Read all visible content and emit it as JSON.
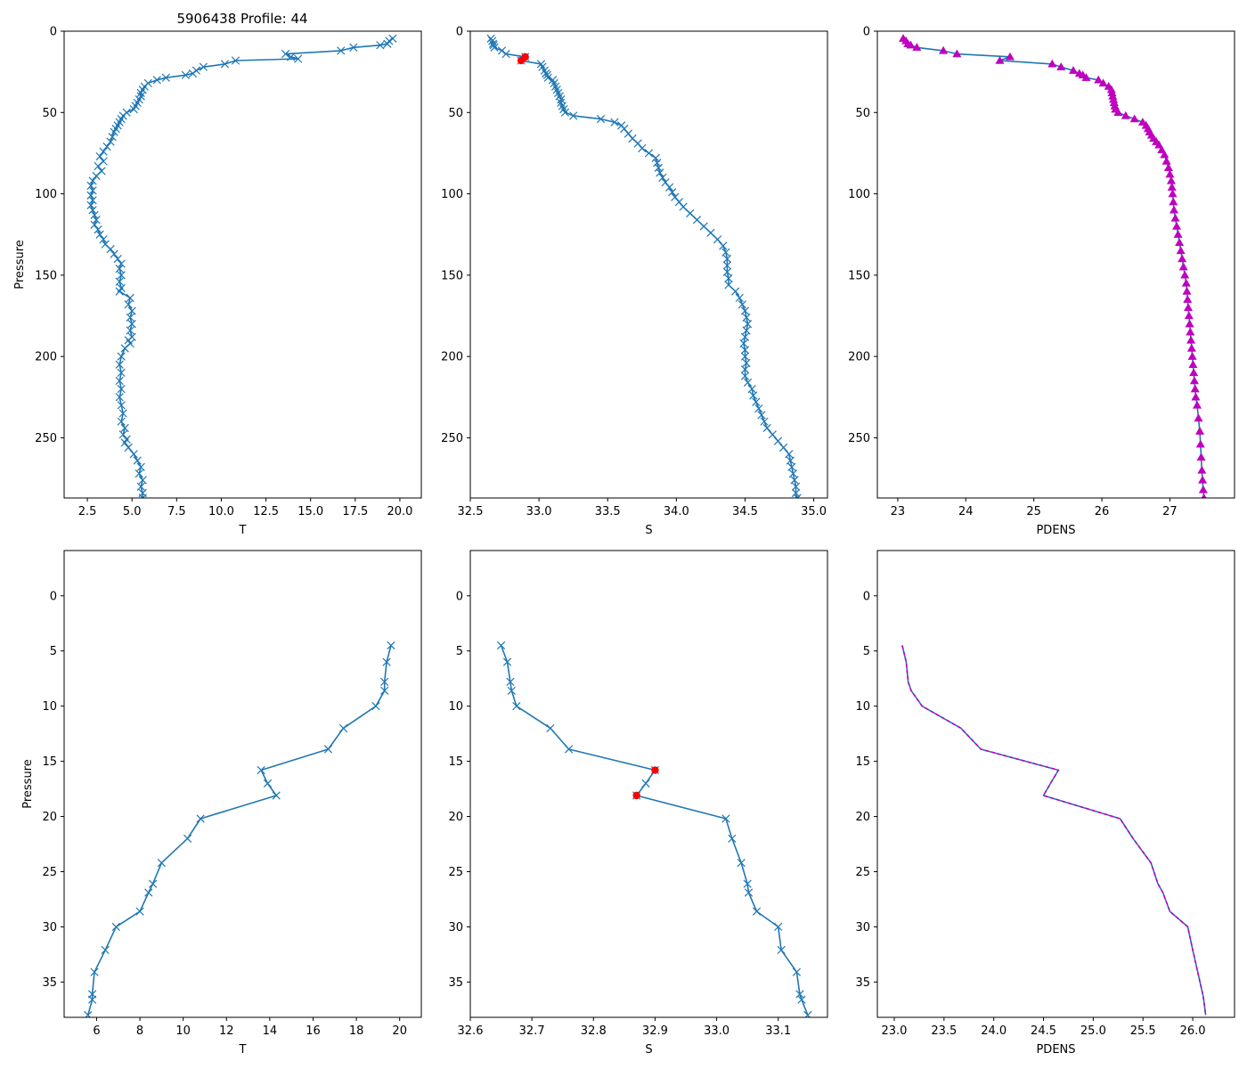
{
  "figure_title": "5906438 Profile: 44",
  "chart_data": [
    {
      "type": "line",
      "panel": "top-left",
      "title": "5906438 Profile: 44",
      "xlabel": "T",
      "ylabel": "Pressure",
      "xlim": [
        1.2,
        21.2
      ],
      "ylim": [
        287,
        0
      ],
      "xticks": [
        2.5,
        5.0,
        7.5,
        10.0,
        12.5,
        15.0,
        17.5,
        20.0
      ],
      "xtick_labels": [
        "2.5",
        "5.0",
        "7.5",
        "10.0",
        "12.5",
        "15.0",
        "17.5",
        "20.0"
      ],
      "yticks": [
        0,
        50,
        100,
        150,
        200,
        250
      ],
      "ytick_labels": [
        "0",
        "50",
        "100",
        "150",
        "200",
        "250"
      ],
      "series": [
        {
          "name": "T",
          "color": "#1f77b4",
          "marker": "x",
          "x": [
            19.6,
            19.4,
            19.3,
            18.9,
            17.4,
            16.7,
            13.6,
            13.9,
            14.3,
            10.8,
            10.2,
            9.0,
            8.6,
            8.4,
            8.0,
            6.9,
            6.4,
            5.9,
            5.7,
            5.6,
            5.5,
            5.5,
            5.4,
            5.3,
            5.2,
            5.1,
            4.7,
            4.5,
            4.4,
            4.3,
            4.2,
            4.1,
            4.0,
            3.9,
            3.8,
            3.6,
            3.4,
            3.2,
            3.4,
            3.1,
            3.3,
            3.0,
            2.8,
            2.7,
            2.8,
            2.7,
            2.8,
            2.7,
            2.8,
            2.9,
            3.0,
            2.9,
            3.1,
            3.2,
            3.4,
            3.5,
            3.8,
            4.0,
            4.2,
            4.4,
            4.3,
            4.4,
            4.3,
            4.4,
            4.3,
            4.9,
            4.8,
            5.0,
            4.9,
            5.0,
            4.9,
            5.0,
            4.8,
            4.9,
            4.6,
            4.4,
            4.3,
            4.4,
            4.3,
            4.4,
            4.3,
            4.4,
            4.5,
            4.4,
            4.6,
            4.5,
            4.7,
            4.6,
            4.8,
            5.1,
            5.3,
            5.5,
            5.4,
            5.6,
            5.5,
            5.6,
            5.6
          ],
          "y": [
            4.5,
            6,
            7.8,
            8.6,
            10,
            12,
            14,
            15.8,
            17,
            18.1,
            20.2,
            22,
            24.2,
            26,
            27,
            28.6,
            30,
            32,
            34,
            36,
            38,
            40,
            42,
            44,
            46,
            48,
            50,
            52,
            54,
            56,
            58,
            60,
            62,
            65,
            68,
            71,
            74,
            77,
            80,
            83,
            86,
            89,
            92,
            95,
            98,
            101,
            104,
            107,
            110,
            113,
            116,
            119,
            122,
            125,
            128,
            131,
            134,
            137,
            140,
            143,
            146,
            150,
            154,
            158,
            160,
            164,
            168,
            172,
            176,
            180,
            184,
            188,
            190,
            192,
            195,
            200,
            205,
            210,
            215,
            220,
            225,
            230,
            235,
            240,
            244,
            248,
            251,
            253,
            256,
            260,
            264,
            268,
            272,
            276,
            280,
            284,
            287
          ]
        }
      ]
    },
    {
      "type": "line",
      "panel": "top-middle",
      "title": "",
      "xlabel": "S",
      "ylabel": "",
      "xlim": [
        32.5,
        35.1
      ],
      "ylim": [
        287,
        0
      ],
      "xticks": [
        32.5,
        33.0,
        33.5,
        34.0,
        34.5,
        35.0
      ],
      "xtick_labels": [
        "32.5",
        "33.0",
        "33.5",
        "34.0",
        "34.5",
        "35.0"
      ],
      "yticks": [
        0,
        50,
        100,
        150,
        200,
        250
      ],
      "ytick_labels": [
        "0",
        "50",
        "100",
        "150",
        "200",
        "250"
      ],
      "series": [
        {
          "name": "S",
          "color": "#1f77b4",
          "marker": "x",
          "x": [
            32.65,
            32.66,
            32.665,
            32.67,
            32.675,
            32.73,
            32.76,
            32.9,
            32.88,
            32.87,
            33.015,
            33.025,
            33.04,
            33.05,
            33.06,
            33.065,
            33.1,
            33.11,
            33.12,
            33.13,
            33.14,
            33.15,
            33.16,
            33.16,
            33.17,
            33.18,
            33.19,
            33.25,
            33.45,
            33.55,
            33.6,
            33.62,
            33.65,
            33.68,
            33.72,
            33.75,
            33.8,
            33.85,
            33.86,
            33.87,
            33.88,
            33.9,
            33.92,
            33.95,
            33.97,
            33.99,
            34.02,
            34.05,
            34.1,
            34.15,
            34.2,
            34.25,
            34.3,
            34.34,
            34.36,
            34.37,
            34.37,
            34.37,
            34.38,
            34.38,
            34.43,
            34.46,
            34.48,
            34.5,
            34.51,
            34.52,
            34.51,
            34.5,
            34.49,
            34.5,
            34.5,
            34.51,
            34.5,
            34.5,
            34.52,
            34.55,
            34.56,
            34.58,
            34.6,
            34.62,
            34.64,
            34.66,
            34.7,
            34.74,
            34.78,
            34.82,
            34.83,
            34.84,
            34.85,
            34.86,
            34.87,
            34.87,
            34.88
          ],
          "y": [
            4.5,
            6,
            7.8,
            8.6,
            10,
            12,
            14,
            15.8,
            17,
            18.1,
            20.2,
            22,
            24.2,
            26,
            27,
            28.6,
            30,
            32,
            34,
            36,
            38,
            40,
            42,
            44,
            46,
            48,
            50,
            52,
            54,
            56,
            58,
            60,
            63,
            66,
            69,
            72,
            75,
            78,
            81,
            84,
            87,
            90,
            93,
            96,
            99,
            102,
            105,
            108,
            112,
            116,
            120,
            124,
            128,
            132,
            136,
            140,
            144,
            148,
            152,
            156,
            160,
            164,
            168,
            172,
            176,
            180,
            184,
            188,
            192,
            196,
            200,
            204,
            208,
            212,
            216,
            220,
            224,
            228,
            232,
            236,
            240,
            244,
            248,
            252,
            256,
            260,
            264,
            268,
            272,
            276,
            280,
            284,
            287
          ]
        }
      ],
      "flagged_points": {
        "color": "#ff0000",
        "x": [
          32.9,
          32.87
        ],
        "y": [
          15.8,
          18.1
        ]
      }
    },
    {
      "type": "scatter",
      "panel": "top-right",
      "title": "",
      "xlabel": "PDENS",
      "ylabel": "",
      "xlim": [
        22.7,
        27.95
      ],
      "ylim": [
        287,
        0
      ],
      "xticks": [
        23,
        24,
        25,
        26,
        27
      ],
      "xtick_labels": [
        "23",
        "24",
        "25",
        "26",
        "27"
      ],
      "yticks": [
        0,
        50,
        100,
        150,
        200,
        250
      ],
      "ytick_labels": [
        "0",
        "50",
        "100",
        "150",
        "200",
        "250"
      ],
      "series": [
        {
          "name": "PDENS",
          "color": "#1f77b4",
          "marker_color": "#bf00bf",
          "marker": "^",
          "x": [
            23.08,
            23.12,
            23.15,
            23.19,
            23.28,
            23.67,
            23.87,
            24.65,
            24.5,
            25.27,
            25.4,
            25.58,
            25.67,
            25.72,
            25.77,
            25.95,
            26.02,
            26.1,
            26.14,
            26.15,
            26.16,
            26.17,
            26.18,
            26.19,
            26.2,
            26.24,
            26.35,
            26.48,
            26.6,
            26.65,
            26.68,
            26.7,
            26.73,
            26.76,
            26.8,
            26.84,
            26.88,
            26.92,
            26.95,
            26.98,
            27.0,
            27.02,
            27.03,
            27.04,
            27.05,
            27.06,
            27.08,
            27.1,
            27.12,
            27.14,
            27.16,
            27.18,
            27.2,
            27.22,
            27.24,
            27.25,
            27.26,
            27.27,
            27.28,
            27.29,
            27.3,
            27.31,
            27.32,
            27.33,
            27.34,
            27.35,
            27.36,
            27.37,
            27.38,
            27.4,
            27.42,
            27.44,
            27.45,
            27.46,
            27.47,
            27.48,
            27.49,
            27.5
          ],
          "y": [
            4.5,
            6,
            7.8,
            8.6,
            10,
            12,
            14,
            15.8,
            18.1,
            20.2,
            22,
            24.2,
            26,
            27,
            28.6,
            30,
            32,
            34,
            36,
            38,
            40,
            42,
            44,
            46,
            48,
            50,
            52,
            54,
            56,
            58,
            60,
            62,
            64,
            66,
            68,
            70,
            73,
            76,
            80,
            84,
            88,
            92,
            96,
            100,
            105,
            110,
            115,
            120,
            125,
            130,
            135,
            140,
            145,
            150,
            155,
            160,
            165,
            170,
            175,
            180,
            185,
            190,
            195,
            200,
            205,
            210,
            215,
            220,
            225,
            230,
            238,
            246,
            254,
            262,
            270,
            276,
            282,
            287
          ]
        }
      ]
    },
    {
      "type": "line",
      "panel": "bottom-left",
      "title": "",
      "xlabel": "T",
      "ylabel": "Pressure",
      "xlim": [
        4.5,
        21.0
      ],
      "ylim": [
        38.2,
        -4.1
      ],
      "xticks": [
        6,
        8,
        10,
        12,
        14,
        16,
        18,
        20
      ],
      "xtick_labels": [
        "6",
        "8",
        "10",
        "12",
        "14",
        "16",
        "18",
        "20"
      ],
      "yticks": [
        0,
        5,
        10,
        15,
        20,
        25,
        30,
        35
      ],
      "ytick_labels": [
        "0",
        "5",
        "10",
        "15",
        "20",
        "25",
        "30",
        "35"
      ],
      "series": [
        {
          "name": "T",
          "color": "#1f77b4",
          "marker": "x",
          "x": [
            19.6,
            19.4,
            19.3,
            19.3,
            18.9,
            17.4,
            16.7,
            13.6,
            13.9,
            14.3,
            10.8,
            10.2,
            9.0,
            8.6,
            8.4,
            8.0,
            6.9,
            6.4,
            5.9,
            5.8,
            5.8,
            5.6
          ],
          "y": [
            4.5,
            6.0,
            7.8,
            8.6,
            10.0,
            12.0,
            13.9,
            15.8,
            17.0,
            18.1,
            20.2,
            22.0,
            24.2,
            26.1,
            26.9,
            28.6,
            30.0,
            32.1,
            34.1,
            36.1,
            36.6,
            38.0
          ]
        }
      ]
    },
    {
      "type": "line",
      "panel": "bottom-middle",
      "title": "",
      "xlabel": "S",
      "ylabel": "",
      "xlim": [
        32.6,
        33.18
      ],
      "ylim": [
        38.2,
        -4.1
      ],
      "xticks": [
        32.6,
        32.7,
        32.8,
        32.9,
        33.0,
        33.1
      ],
      "xtick_labels": [
        "32.6",
        "32.7",
        "32.8",
        "32.9",
        "33.0",
        "33.1"
      ],
      "yticks": [
        0,
        5,
        10,
        15,
        20,
        25,
        30,
        35
      ],
      "ytick_labels": [
        "0",
        "5",
        "10",
        "15",
        "20",
        "25",
        "30",
        "35"
      ],
      "series": [
        {
          "name": "S",
          "color": "#1f77b4",
          "marker": "x",
          "x": [
            32.65,
            32.66,
            32.665,
            32.667,
            32.675,
            32.73,
            32.76,
            32.9,
            32.885,
            32.87,
            33.015,
            33.025,
            33.04,
            33.05,
            33.052,
            33.065,
            33.1,
            33.105,
            33.13,
            33.135,
            33.138,
            33.148
          ],
          "y": [
            4.5,
            6.0,
            7.8,
            8.6,
            10.0,
            12.0,
            13.9,
            15.8,
            17.0,
            18.1,
            20.2,
            22.0,
            24.2,
            26.1,
            26.9,
            28.6,
            30.0,
            32.1,
            34.1,
            36.1,
            36.6,
            38.0
          ]
        }
      ],
      "flagged_points": {
        "color": "#ff0000",
        "x": [
          32.9,
          32.87
        ],
        "y": [
          15.8,
          18.1
        ]
      }
    },
    {
      "type": "line",
      "panel": "bottom-right",
      "title": "",
      "xlabel": "PDENS",
      "ylabel": "",
      "xlim": [
        22.83,
        26.42
      ],
      "ylim": [
        38.2,
        -4.1
      ],
      "xticks": [
        23.0,
        23.5,
        24.0,
        24.5,
        25.0,
        25.5,
        26.0
      ],
      "xtick_labels": [
        "23.0",
        "23.5",
        "24.0",
        "24.5",
        "25.0",
        "25.5",
        "26.0"
      ],
      "yticks": [
        0,
        5,
        10,
        15,
        20,
        25,
        30,
        35
      ],
      "ytick_labels": [
        "0",
        "5",
        "10",
        "15",
        "20",
        "25",
        "30",
        "35"
      ],
      "series": [
        {
          "name": "PDENS",
          "color": "#1f77b4",
          "overlay_color": "#bf00bf",
          "overlay_dashed": true,
          "x": [
            23.08,
            23.12,
            23.14,
            23.17,
            23.28,
            23.67,
            23.87,
            24.65,
            24.57,
            24.5,
            25.27,
            25.4,
            25.58,
            25.65,
            25.7,
            25.77,
            25.95,
            26.0,
            26.05,
            26.1,
            26.11,
            26.13
          ],
          "y": [
            4.5,
            6.0,
            7.8,
            8.6,
            10.0,
            12.0,
            13.9,
            15.8,
            17.0,
            18.1,
            20.2,
            22.0,
            24.2,
            26.1,
            26.9,
            28.6,
            30.0,
            32.1,
            34.1,
            36.1,
            36.6,
            38.0
          ]
        }
      ]
    }
  ]
}
